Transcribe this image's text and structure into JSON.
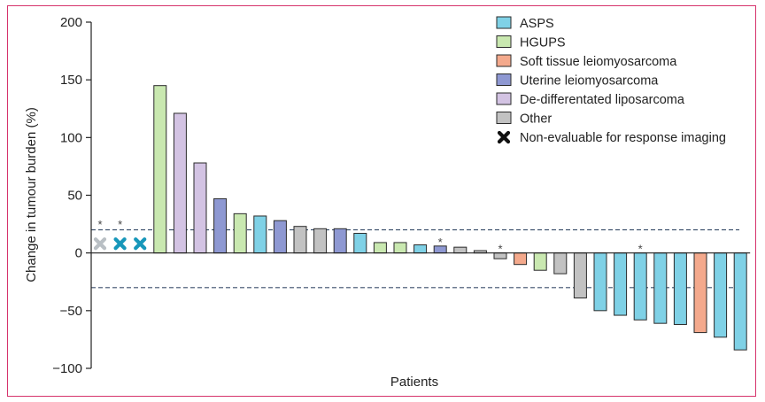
{
  "chart_data": {
    "type": "bar",
    "ylabel": "Change in tumour burden (%)",
    "xlabel": "Patients",
    "ylim": [
      -100,
      200
    ],
    "yticks": [
      200,
      150,
      100,
      50,
      0,
      -50,
      -100
    ],
    "ytick_labels": [
      "200",
      "150",
      "100",
      "50",
      "0",
      "−50",
      "−100"
    ],
    "reference_lines": [
      20,
      -30
    ],
    "colors": {
      "ASPS": "#7fd1e6",
      "HGUPS": "#c9e8b0",
      "Soft tissue leiomyosarcoma": "#f4a98c",
      "Uterine leiomyosarcoma": "#8e98d2",
      "De-differentated liposarcoma": "#d3c3e3",
      "Other": "#c2c2c2"
    },
    "marker_colors": {
      "Other": "#b9bfc4",
      "ASPS": "#1797ba"
    },
    "legend": [
      {
        "label": "ASPS",
        "key": "ASPS",
        "marker": "box"
      },
      {
        "label": "HGUPS",
        "key": "HGUPS",
        "marker": "box"
      },
      {
        "label": "Soft tissue leiomyosarcoma",
        "key": "Soft tissue leiomyosarcoma",
        "marker": "box"
      },
      {
        "label": "Uterine leiomyosarcoma",
        "key": "Uterine leiomyosarcoma",
        "marker": "box"
      },
      {
        "label": "De-differentated liposarcoma",
        "key": "De-differentated liposarcoma",
        "marker": "box"
      },
      {
        "label": "Other",
        "key": "Other",
        "marker": "box"
      },
      {
        "label": "Non-evaluable for response imaging",
        "key": "none",
        "marker": "cross"
      }
    ],
    "non_evaluable": [
      {
        "type": "Other",
        "star": true
      },
      {
        "type": "ASPS",
        "star": true
      },
      {
        "type": "ASPS",
        "star": false
      }
    ],
    "bars": [
      {
        "type": "HGUPS",
        "value": 145,
        "star": false
      },
      {
        "type": "De-differentated liposarcoma",
        "value": 121,
        "star": false
      },
      {
        "type": "De-differentated liposarcoma",
        "value": 78,
        "star": false
      },
      {
        "type": "Uterine leiomyosarcoma",
        "value": 47,
        "star": false
      },
      {
        "type": "HGUPS",
        "value": 34,
        "star": false
      },
      {
        "type": "ASPS",
        "value": 32,
        "star": false
      },
      {
        "type": "Uterine leiomyosarcoma",
        "value": 28,
        "star": false
      },
      {
        "type": "Other",
        "value": 23,
        "star": false
      },
      {
        "type": "Other",
        "value": 21,
        "star": false
      },
      {
        "type": "Uterine leiomyosarcoma",
        "value": 21,
        "star": false
      },
      {
        "type": "ASPS",
        "value": 17,
        "star": false
      },
      {
        "type": "HGUPS",
        "value": 9,
        "star": false
      },
      {
        "type": "HGUPS",
        "value": 9,
        "star": false
      },
      {
        "type": "ASPS",
        "value": 7,
        "star": false
      },
      {
        "type": "Uterine leiomyosarcoma",
        "value": 6,
        "star": true
      },
      {
        "type": "Other",
        "value": 5,
        "star": false
      },
      {
        "type": "Other",
        "value": 2,
        "star": false
      },
      {
        "type": "Other",
        "value": -5,
        "star": true
      },
      {
        "type": "Soft tissue leiomyosarcoma",
        "value": -10,
        "star": false
      },
      {
        "type": "HGUPS",
        "value": -15,
        "star": false
      },
      {
        "type": "Other",
        "value": -18,
        "star": false
      },
      {
        "type": "Other",
        "value": -39,
        "star": false
      },
      {
        "type": "ASPS",
        "value": -50,
        "star": false
      },
      {
        "type": "ASPS",
        "value": -54,
        "star": false
      },
      {
        "type": "ASPS",
        "value": -58,
        "star": true
      },
      {
        "type": "ASPS",
        "value": -61,
        "star": false
      },
      {
        "type": "ASPS",
        "value": -62,
        "star": false
      },
      {
        "type": "Soft tissue leiomyosarcoma",
        "value": -69,
        "star": false
      },
      {
        "type": "ASPS",
        "value": -73,
        "star": false
      },
      {
        "type": "ASPS",
        "value": -84,
        "star": false
      }
    ],
    "star_symbol": "*"
  }
}
